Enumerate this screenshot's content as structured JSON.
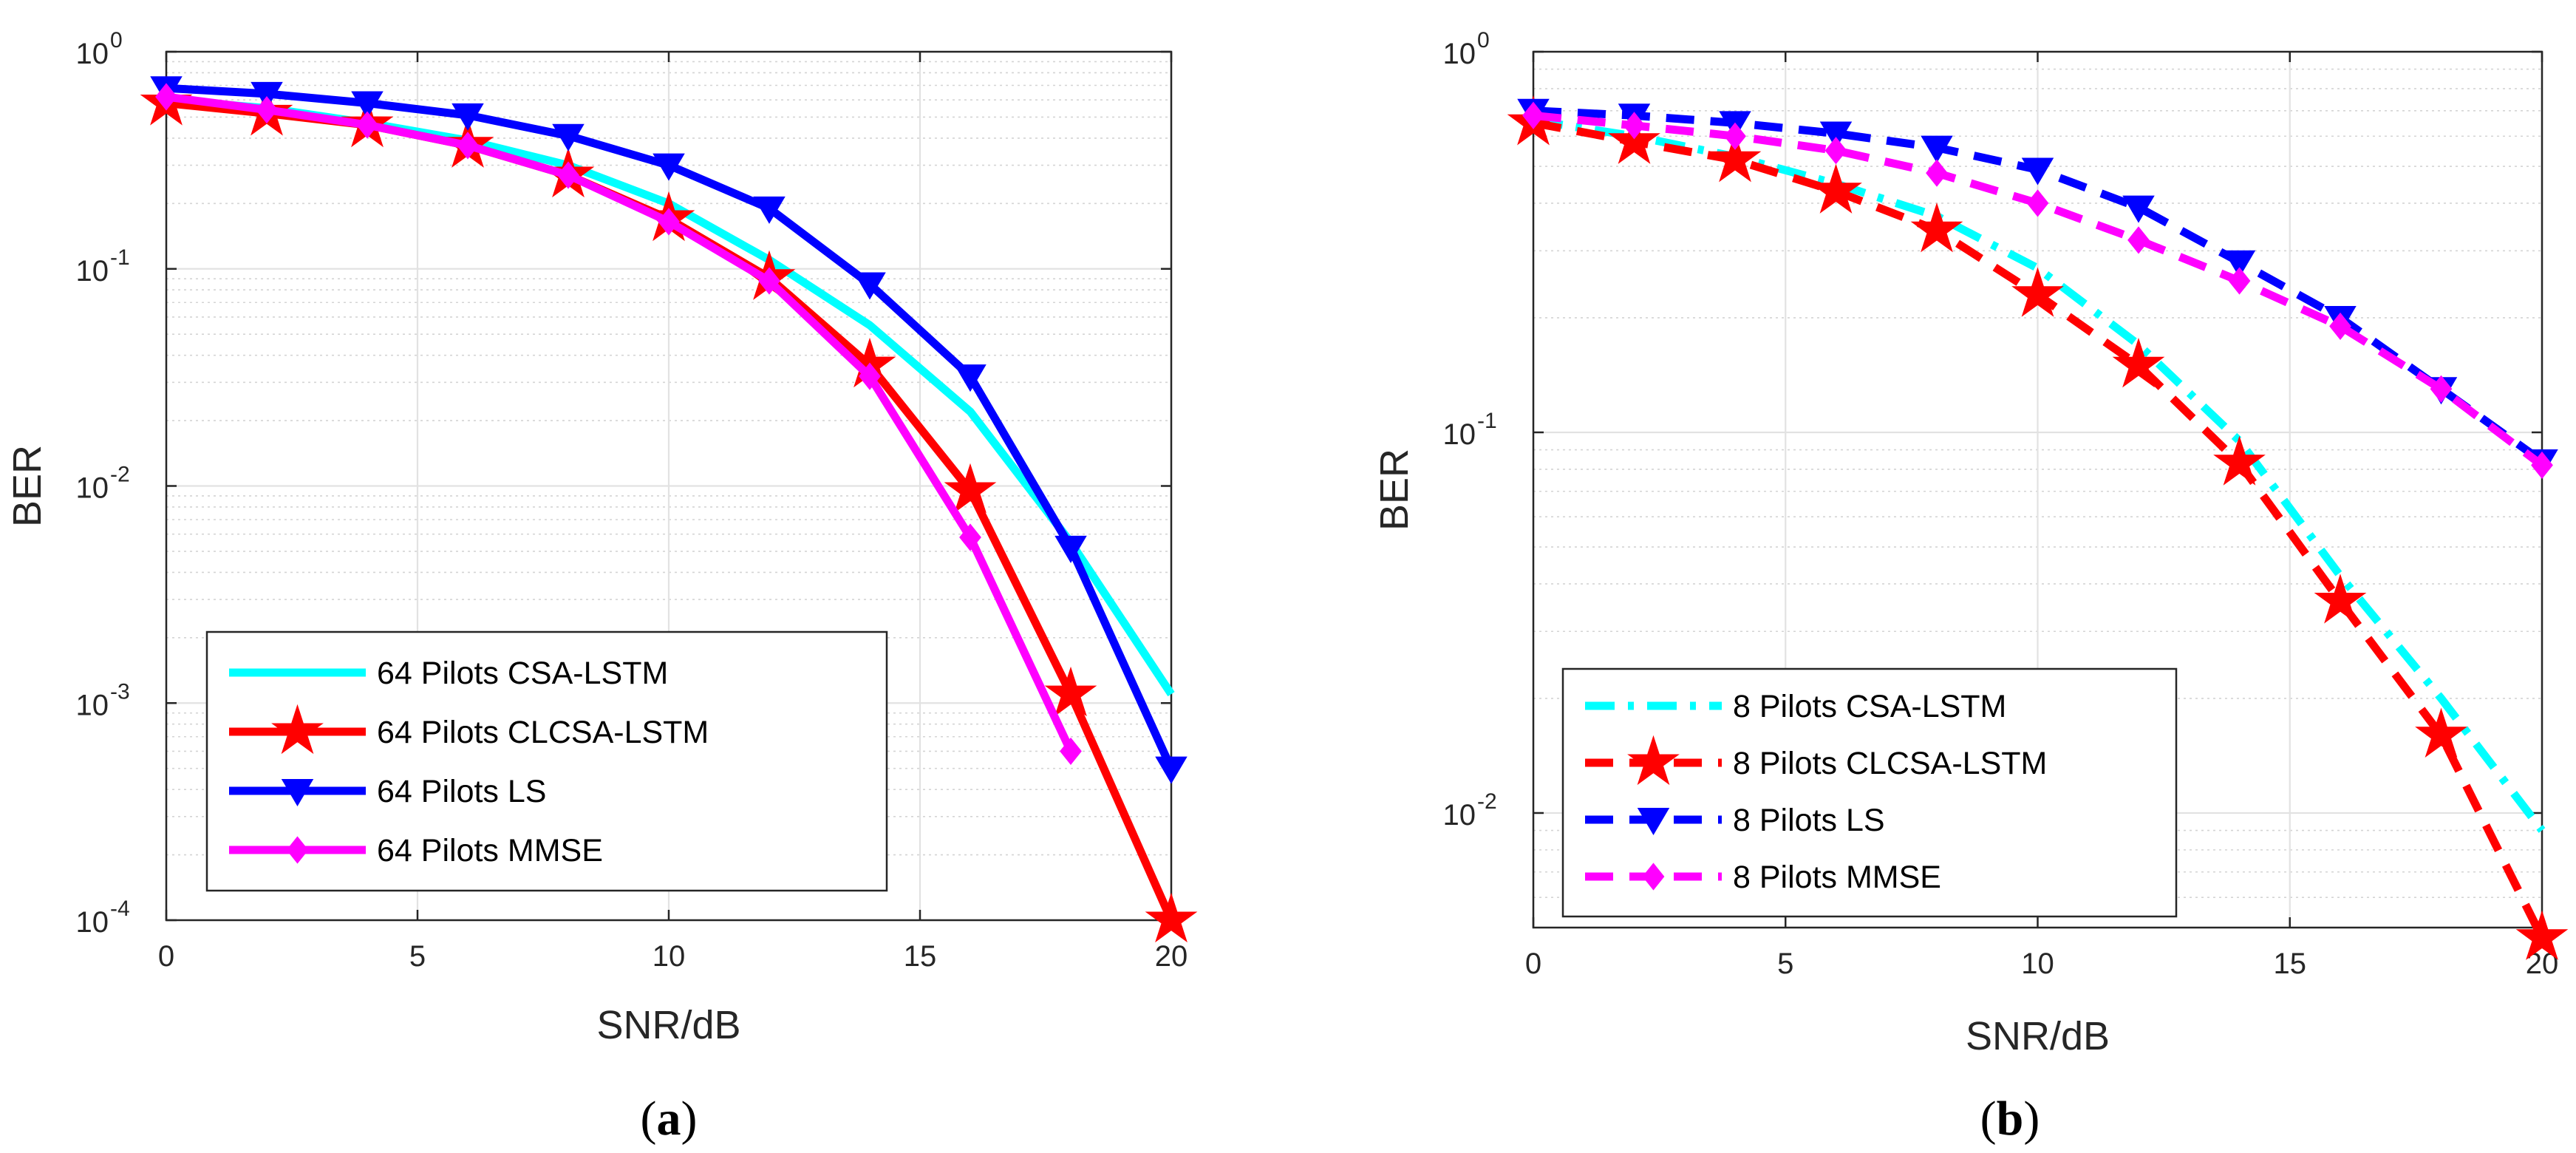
{
  "chart_data": [
    {
      "panel_label": "a",
      "type": "line",
      "yscale": "log",
      "xlabel": "SNR/dB",
      "ylabel": "BER",
      "xlim": [
        0,
        20
      ],
      "ylim": [
        0.0001,
        1
      ],
      "xticks": [
        0,
        5,
        10,
        15,
        20
      ],
      "yticks": [
        {
          "base": "10",
          "exp": "-4",
          "v": 0.0001
        },
        {
          "base": "10",
          "exp": "-3",
          "v": 0.001
        },
        {
          "base": "10",
          "exp": "-2",
          "v": 0.01
        },
        {
          "base": "10",
          "exp": "-1",
          "v": 0.1
        },
        {
          "base": "10",
          "exp": "0",
          "v": 1
        }
      ],
      "grid": true,
      "legend_position": "bottom-left",
      "series": [
        {
          "name": "64 Pilots CSA-LSTM",
          "color": "#00FFFF",
          "style": "solid",
          "marker": "none",
          "x": [
            0,
            2,
            4,
            6,
            8,
            10,
            12,
            14,
            16,
            18,
            20
          ],
          "y": [
            0.6,
            0.55,
            0.47,
            0.39,
            0.3,
            0.2,
            0.11,
            0.055,
            0.022,
            0.0055,
            0.0011
          ]
        },
        {
          "name": "64 Pilots CLCSA-LSTM",
          "color": "#FF0000",
          "style": "solid",
          "marker": "star",
          "x": [
            0,
            2,
            4,
            6,
            8,
            10,
            12,
            14,
            16,
            18,
            20
          ],
          "y": [
            0.58,
            0.52,
            0.46,
            0.37,
            0.27,
            0.17,
            0.091,
            0.036,
            0.0095,
            0.0011,
            0.0001
          ]
        },
        {
          "name": "64 Pilots LS",
          "color": "#0000FF",
          "style": "solid",
          "marker": "triangle-down",
          "x": [
            0,
            2,
            4,
            6,
            8,
            10,
            12,
            14,
            16,
            18,
            20
          ],
          "y": [
            0.68,
            0.64,
            0.58,
            0.51,
            0.41,
            0.3,
            0.19,
            0.085,
            0.032,
            0.0052,
            0.0005
          ]
        },
        {
          "name": "64 Pilots MMSE",
          "color": "#FF00FF",
          "style": "solid",
          "marker": "diamond",
          "x": [
            0,
            2,
            4,
            6,
            8,
            10,
            12,
            14,
            16,
            18
          ],
          "y": [
            0.62,
            0.54,
            0.46,
            0.37,
            0.27,
            0.165,
            0.088,
            0.032,
            0.0058,
            0.0006
          ]
        }
      ]
    },
    {
      "panel_label": "b",
      "type": "line",
      "yscale": "log",
      "xlabel": "SNR/dB",
      "ylabel": "BER",
      "xlim": [
        0,
        20
      ],
      "ylim": [
        0.005,
        1
      ],
      "xticks": [
        0,
        5,
        10,
        15,
        20
      ],
      "yticks": [
        {
          "base": "10",
          "exp": "-2",
          "v": 0.01
        },
        {
          "base": "10",
          "exp": "-1",
          "v": 0.1
        },
        {
          "base": "10",
          "exp": "0",
          "v": 1
        }
      ],
      "grid": true,
      "legend_position": "bottom-left",
      "series": [
        {
          "name": "8 Pilots CSA-LSTM",
          "color": "#00FFFF",
          "style": "dash-dot",
          "marker": "none",
          "x": [
            0,
            2,
            4,
            6,
            8,
            10,
            12,
            14,
            16,
            18,
            20
          ],
          "y": [
            0.66,
            0.6,
            0.53,
            0.45,
            0.37,
            0.27,
            0.17,
            0.095,
            0.042,
            0.02,
            0.009
          ]
        },
        {
          "name": "8 Pilots CLCSA-LSTM",
          "color": "#FF0000",
          "style": "dashed",
          "marker": "star",
          "x": [
            0,
            2,
            4,
            6,
            8,
            10,
            12,
            14,
            16,
            18,
            20
          ],
          "y": [
            0.65,
            0.58,
            0.52,
            0.43,
            0.34,
            0.23,
            0.15,
            0.083,
            0.036,
            0.016,
            0.0047
          ]
        },
        {
          "name": "8 Pilots LS",
          "color": "#0000FF",
          "style": "dashed",
          "marker": "triangle-down",
          "x": [
            0,
            2,
            4,
            6,
            8,
            10,
            12,
            14,
            16,
            18,
            20
          ],
          "y": [
            0.7,
            0.68,
            0.65,
            0.61,
            0.56,
            0.49,
            0.39,
            0.28,
            0.2,
            0.13,
            0.084
          ]
        },
        {
          "name": "8 Pilots MMSE",
          "color": "#FF00FF",
          "style": "dashed",
          "marker": "diamond",
          "x": [
            0,
            2,
            4,
            6,
            8,
            10,
            12,
            14,
            16,
            18,
            20
          ],
          "y": [
            0.68,
            0.64,
            0.6,
            0.55,
            0.48,
            0.4,
            0.32,
            0.25,
            0.19,
            0.13,
            0.082
          ]
        }
      ]
    }
  ]
}
